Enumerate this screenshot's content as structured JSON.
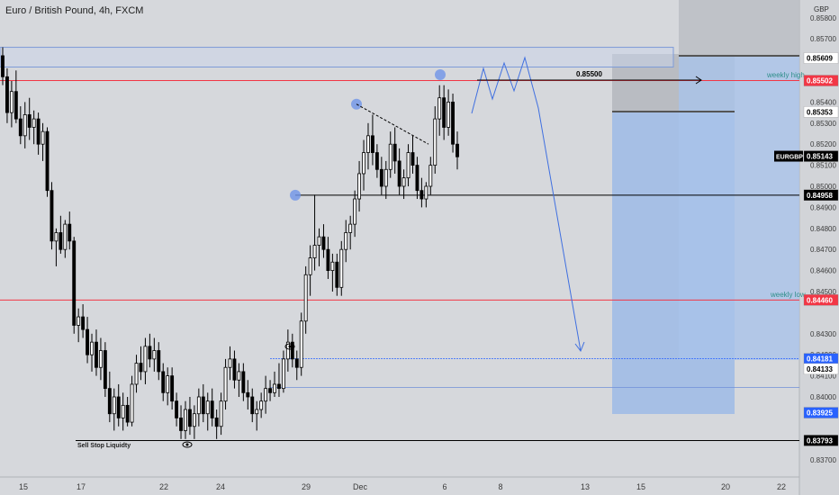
{
  "header": {
    "title": "Euro / British Pound, 4h, FXCM"
  },
  "colors": {
    "background": "#d6d8dc",
    "up_candle": "#ffffff",
    "down_candle": "#000000",
    "red_line": "#f23645",
    "blue_line": "#2962ff",
    "zone_blue": "#9dbbe6",
    "zone_gray": "#b4b7bd",
    "axis_text": "#3a3a3a"
  },
  "chart_data": {
    "type": "candlestick",
    "symbol": "EURGBP",
    "currency_label": "GBP",
    "x_tick_labels": [
      "15",
      "17",
      "22",
      "24",
      "29",
      "Dec",
      "6",
      "8",
      "13",
      "15",
      "20",
      "22"
    ],
    "y_range": [
      0.8365,
      0.8585
    ],
    "y_tick_labels": [
      "0.85800",
      "0.85700",
      "0.85400",
      "0.85300",
      "0.85200",
      "0.85100",
      "0.85000",
      "0.84900",
      "0.84800",
      "0.84700",
      "0.84600",
      "0.84500",
      "0.84300",
      "0.84200",
      "0.84100",
      "0.84000",
      "0.83700"
    ],
    "price_badges": [
      {
        "label": "",
        "value": "0.85609",
        "bg": "#ffffff",
        "fg": "#000000"
      },
      {
        "label": "",
        "value": "0.85502",
        "bg": "#f23645",
        "fg": "#ffffff"
      },
      {
        "label": "",
        "value": "0.85353",
        "bg": "#ffffff",
        "fg": "#000000"
      },
      {
        "label": "EURGBP",
        "value": "0.85143",
        "bg": "#000000",
        "fg": "#ffffff"
      },
      {
        "label": "",
        "value": "0.84958",
        "bg": "#000000",
        "fg": "#ffffff"
      },
      {
        "label": "",
        "value": "0.84460",
        "bg": "#f23645",
        "fg": "#ffffff"
      },
      {
        "label": "",
        "value": "0.84181",
        "bg": "#2962ff",
        "fg": "#ffffff"
      },
      {
        "label": "",
        "value": "0.84133",
        "bg": "#ffffff",
        "fg": "#000000"
      },
      {
        "label": "",
        "value": "0.83925",
        "bg": "#2962ff",
        "fg": "#ffffff"
      },
      {
        "label": "",
        "value": "0.83793",
        "bg": "#000000",
        "fg": "#ffffff"
      }
    ],
    "annotations": {
      "weekly_high": "weekly high",
      "weekly_low": "weekly low",
      "sell_stop": "Sell Stop Liquidty",
      "target_price": "0.85500"
    },
    "levels": {
      "weekly_high": 0.85502,
      "weekly_low": 0.8446,
      "support": 0.84958,
      "sell_stop": 0.83793,
      "demand_top": 0.84181,
      "demand_bottom": 0.84045,
      "supply_top": 0.8566,
      "supply_bottom": 0.85609
    },
    "candles": [
      {
        "o": 0.8562,
        "h": 0.8566,
        "l": 0.8548,
        "c": 0.8552
      },
      {
        "o": 0.8552,
        "h": 0.8556,
        "l": 0.853,
        "c": 0.8535
      },
      {
        "o": 0.8535,
        "h": 0.855,
        "l": 0.8528,
        "c": 0.8545
      },
      {
        "o": 0.8545,
        "h": 0.8555,
        "l": 0.853,
        "c": 0.8532
      },
      {
        "o": 0.8532,
        "h": 0.8538,
        "l": 0.852,
        "c": 0.8524
      },
      {
        "o": 0.8524,
        "h": 0.854,
        "l": 0.8518,
        "c": 0.8534
      },
      {
        "o": 0.8534,
        "h": 0.8542,
        "l": 0.8522,
        "c": 0.8528
      },
      {
        "o": 0.8528,
        "h": 0.8536,
        "l": 0.852,
        "c": 0.8532
      },
      {
        "o": 0.8532,
        "h": 0.8535,
        "l": 0.8515,
        "c": 0.852
      },
      {
        "o": 0.852,
        "h": 0.853,
        "l": 0.8512,
        "c": 0.8526
      },
      {
        "o": 0.8526,
        "h": 0.8528,
        "l": 0.8495,
        "c": 0.8498
      },
      {
        "o": 0.8498,
        "h": 0.8502,
        "l": 0.847,
        "c": 0.8474
      },
      {
        "o": 0.8474,
        "h": 0.848,
        "l": 0.8462,
        "c": 0.8478
      },
      {
        "o": 0.8478,
        "h": 0.8486,
        "l": 0.8468,
        "c": 0.847
      },
      {
        "o": 0.847,
        "h": 0.8484,
        "l": 0.8466,
        "c": 0.8482
      },
      {
        "o": 0.8482,
        "h": 0.8488,
        "l": 0.847,
        "c": 0.8474
      },
      {
        "o": 0.8474,
        "h": 0.8476,
        "l": 0.843,
        "c": 0.8434
      },
      {
        "o": 0.8434,
        "h": 0.8442,
        "l": 0.8426,
        "c": 0.8438
      },
      {
        "o": 0.8438,
        "h": 0.8444,
        "l": 0.8428,
        "c": 0.8432
      },
      {
        "o": 0.8432,
        "h": 0.8438,
        "l": 0.8416,
        "c": 0.842
      },
      {
        "o": 0.842,
        "h": 0.843,
        "l": 0.8412,
        "c": 0.8426
      },
      {
        "o": 0.8426,
        "h": 0.8432,
        "l": 0.841,
        "c": 0.8414
      },
      {
        "o": 0.8414,
        "h": 0.8428,
        "l": 0.8408,
        "c": 0.8422
      },
      {
        "o": 0.8422,
        "h": 0.8426,
        "l": 0.84,
        "c": 0.8404
      },
      {
        "o": 0.8404,
        "h": 0.8412,
        "l": 0.8388,
        "c": 0.8392
      },
      {
        "o": 0.8392,
        "h": 0.8404,
        "l": 0.8384,
        "c": 0.84
      },
      {
        "o": 0.84,
        "h": 0.8406,
        "l": 0.8386,
        "c": 0.839
      },
      {
        "o": 0.839,
        "h": 0.8402,
        "l": 0.8384,
        "c": 0.8396
      },
      {
        "o": 0.8396,
        "h": 0.84,
        "l": 0.8386,
        "c": 0.8388
      },
      {
        "o": 0.8388,
        "h": 0.841,
        "l": 0.8386,
        "c": 0.8406
      },
      {
        "o": 0.8406,
        "h": 0.842,
        "l": 0.8402,
        "c": 0.8416
      },
      {
        "o": 0.8416,
        "h": 0.8424,
        "l": 0.8408,
        "c": 0.8412
      },
      {
        "o": 0.8412,
        "h": 0.8428,
        "l": 0.8406,
        "c": 0.8424
      },
      {
        "o": 0.8424,
        "h": 0.843,
        "l": 0.8414,
        "c": 0.8418
      },
      {
        "o": 0.8418,
        "h": 0.8428,
        "l": 0.8412,
        "c": 0.8422
      },
      {
        "o": 0.8422,
        "h": 0.8426,
        "l": 0.8408,
        "c": 0.8412
      },
      {
        "o": 0.8412,
        "h": 0.8416,
        "l": 0.8398,
        "c": 0.8402
      },
      {
        "o": 0.8402,
        "h": 0.8414,
        "l": 0.8396,
        "c": 0.841
      },
      {
        "o": 0.841,
        "h": 0.8414,
        "l": 0.8394,
        "c": 0.8398
      },
      {
        "o": 0.8398,
        "h": 0.8402,
        "l": 0.8386,
        "c": 0.839
      },
      {
        "o": 0.839,
        "h": 0.8396,
        "l": 0.838,
        "c": 0.8384
      },
      {
        "o": 0.8384,
        "h": 0.8398,
        "l": 0.838,
        "c": 0.8394
      },
      {
        "o": 0.8394,
        "h": 0.84,
        "l": 0.8382,
        "c": 0.8386
      },
      {
        "o": 0.8386,
        "h": 0.8396,
        "l": 0.838,
        "c": 0.8392
      },
      {
        "o": 0.8392,
        "h": 0.8404,
        "l": 0.8386,
        "c": 0.84
      },
      {
        "o": 0.84,
        "h": 0.8406,
        "l": 0.8388,
        "c": 0.8392
      },
      {
        "o": 0.8392,
        "h": 0.8402,
        "l": 0.8384,
        "c": 0.8398
      },
      {
        "o": 0.8398,
        "h": 0.8404,
        "l": 0.8386,
        "c": 0.839
      },
      {
        "o": 0.839,
        "h": 0.8394,
        "l": 0.838,
        "c": 0.8386
      },
      {
        "o": 0.8386,
        "h": 0.8402,
        "l": 0.8382,
        "c": 0.8398
      },
      {
        "o": 0.8398,
        "h": 0.8418,
        "l": 0.8394,
        "c": 0.8414
      },
      {
        "o": 0.8414,
        "h": 0.8424,
        "l": 0.8408,
        "c": 0.8418
      },
      {
        "o": 0.8418,
        "h": 0.8422,
        "l": 0.8404,
        "c": 0.8408
      },
      {
        "o": 0.8408,
        "h": 0.8416,
        "l": 0.84,
        "c": 0.8412
      },
      {
        "o": 0.8412,
        "h": 0.8416,
        "l": 0.8398,
        "c": 0.8402
      },
      {
        "o": 0.8402,
        "h": 0.8408,
        "l": 0.8394,
        "c": 0.84
      },
      {
        "o": 0.84,
        "h": 0.8404,
        "l": 0.8388,
        "c": 0.8392
      },
      {
        "o": 0.8392,
        "h": 0.8398,
        "l": 0.8384,
        "c": 0.8394
      },
      {
        "o": 0.8394,
        "h": 0.8402,
        "l": 0.839,
        "c": 0.8398
      },
      {
        "o": 0.8398,
        "h": 0.841,
        "l": 0.8392,
        "c": 0.8404
      },
      {
        "o": 0.8404,
        "h": 0.8408,
        "l": 0.8398,
        "c": 0.8402
      },
      {
        "o": 0.8402,
        "h": 0.8412,
        "l": 0.84,
        "c": 0.8406
      },
      {
        "o": 0.8406,
        "h": 0.8416,
        "l": 0.84,
        "c": 0.8404
      },
      {
        "o": 0.8404,
        "h": 0.8422,
        "l": 0.8402,
        "c": 0.8418
      },
      {
        "o": 0.8418,
        "h": 0.8432,
        "l": 0.8412,
        "c": 0.8426
      },
      {
        "o": 0.8426,
        "h": 0.843,
        "l": 0.8414,
        "c": 0.8418
      },
      {
        "o": 0.8418,
        "h": 0.8422,
        "l": 0.8408,
        "c": 0.8414
      },
      {
        "o": 0.8414,
        "h": 0.844,
        "l": 0.841,
        "c": 0.8436
      },
      {
        "o": 0.8436,
        "h": 0.8462,
        "l": 0.843,
        "c": 0.8458
      },
      {
        "o": 0.8458,
        "h": 0.8472,
        "l": 0.8448,
        "c": 0.8466
      },
      {
        "o": 0.8466,
        "h": 0.8496,
        "l": 0.846,
        "c": 0.8472
      },
      {
        "o": 0.8472,
        "h": 0.848,
        "l": 0.8462,
        "c": 0.8476
      },
      {
        "o": 0.8476,
        "h": 0.8482,
        "l": 0.8466,
        "c": 0.847
      },
      {
        "o": 0.847,
        "h": 0.8476,
        "l": 0.8456,
        "c": 0.846
      },
      {
        "o": 0.846,
        "h": 0.8468,
        "l": 0.845,
        "c": 0.8464
      },
      {
        "o": 0.8464,
        "h": 0.8468,
        "l": 0.8448,
        "c": 0.8452
      },
      {
        "o": 0.8452,
        "h": 0.8474,
        "l": 0.8448,
        "c": 0.847
      },
      {
        "o": 0.847,
        "h": 0.8484,
        "l": 0.8464,
        "c": 0.8478
      },
      {
        "o": 0.8478,
        "h": 0.8486,
        "l": 0.847,
        "c": 0.8482
      },
      {
        "o": 0.8482,
        "h": 0.8498,
        "l": 0.8476,
        "c": 0.8494
      },
      {
        "o": 0.8494,
        "h": 0.8512,
        "l": 0.8488,
        "c": 0.8506
      },
      {
        "o": 0.8506,
        "h": 0.8522,
        "l": 0.8498,
        "c": 0.8516
      },
      {
        "o": 0.8516,
        "h": 0.853,
        "l": 0.8508,
        "c": 0.8524
      },
      {
        "o": 0.8524,
        "h": 0.8534,
        "l": 0.851,
        "c": 0.8516
      },
      {
        "o": 0.8516,
        "h": 0.852,
        "l": 0.8504,
        "c": 0.8508
      },
      {
        "o": 0.8508,
        "h": 0.8514,
        "l": 0.8496,
        "c": 0.85
      },
      {
        "o": 0.85,
        "h": 0.8512,
        "l": 0.8494,
        "c": 0.8508
      },
      {
        "o": 0.8508,
        "h": 0.8526,
        "l": 0.8504,
        "c": 0.852
      },
      {
        "o": 0.852,
        "h": 0.8528,
        "l": 0.8506,
        "c": 0.8512
      },
      {
        "o": 0.8512,
        "h": 0.8518,
        "l": 0.8496,
        "c": 0.85
      },
      {
        "o": 0.85,
        "h": 0.8508,
        "l": 0.8494,
        "c": 0.8504
      },
      {
        "o": 0.8504,
        "h": 0.852,
        "l": 0.85,
        "c": 0.8516
      },
      {
        "o": 0.8516,
        "h": 0.8524,
        "l": 0.8506,
        "c": 0.851
      },
      {
        "o": 0.851,
        "h": 0.8514,
        "l": 0.8494,
        "c": 0.8498
      },
      {
        "o": 0.8498,
        "h": 0.8504,
        "l": 0.849,
        "c": 0.8494
      },
      {
        "o": 0.8494,
        "h": 0.8502,
        "l": 0.849,
        "c": 0.85
      },
      {
        "o": 0.85,
        "h": 0.8514,
        "l": 0.8496,
        "c": 0.851
      },
      {
        "o": 0.851,
        "h": 0.8538,
        "l": 0.8506,
        "c": 0.8532
      },
      {
        "o": 0.8532,
        "h": 0.8548,
        "l": 0.8524,
        "c": 0.8542
      },
      {
        "o": 0.8542,
        "h": 0.8548,
        "l": 0.8522,
        "c": 0.8528
      },
      {
        "o": 0.8528,
        "h": 0.8546,
        "l": 0.8524,
        "c": 0.854
      },
      {
        "o": 0.854,
        "h": 0.8544,
        "l": 0.8516,
        "c": 0.852
      },
      {
        "o": 0.852,
        "h": 0.8526,
        "l": 0.8508,
        "c": 0.8514
      }
    ]
  }
}
